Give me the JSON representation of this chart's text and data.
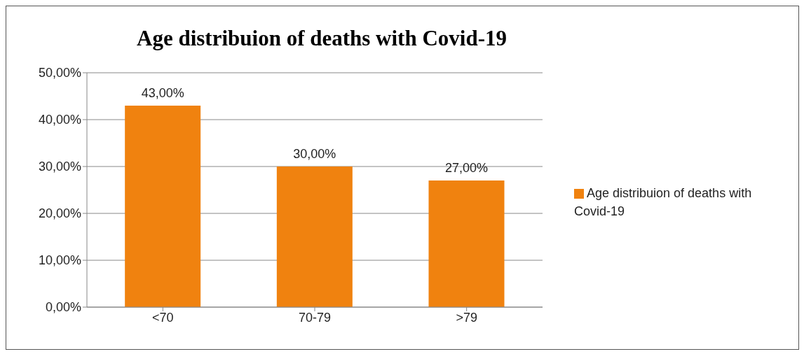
{
  "chart_data": {
    "type": "bar",
    "title": "Age distribuion of deaths with Covid-19",
    "categories": [
      "<70",
      "70-79",
      ">79"
    ],
    "series": [
      {
        "name": "Age distribuion of deaths with Covid-19",
        "color": "#f0820f",
        "values": [
          43,
          30,
          27
        ],
        "value_labels": [
          "43,00%",
          "30,00%",
          "27,00%"
        ]
      }
    ],
    "ylim": [
      0,
      50
    ],
    "yticks": [
      {
        "value": 0,
        "label": "0,00%"
      },
      {
        "value": 10,
        "label": "10,00%"
      },
      {
        "value": 20,
        "label": "20,00%"
      },
      {
        "value": 30,
        "label": "30,00%"
      },
      {
        "value": 40,
        "label": "40,00%"
      },
      {
        "value": 50,
        "label": "50,00%"
      }
    ],
    "grid": "y",
    "legend": "right"
  }
}
